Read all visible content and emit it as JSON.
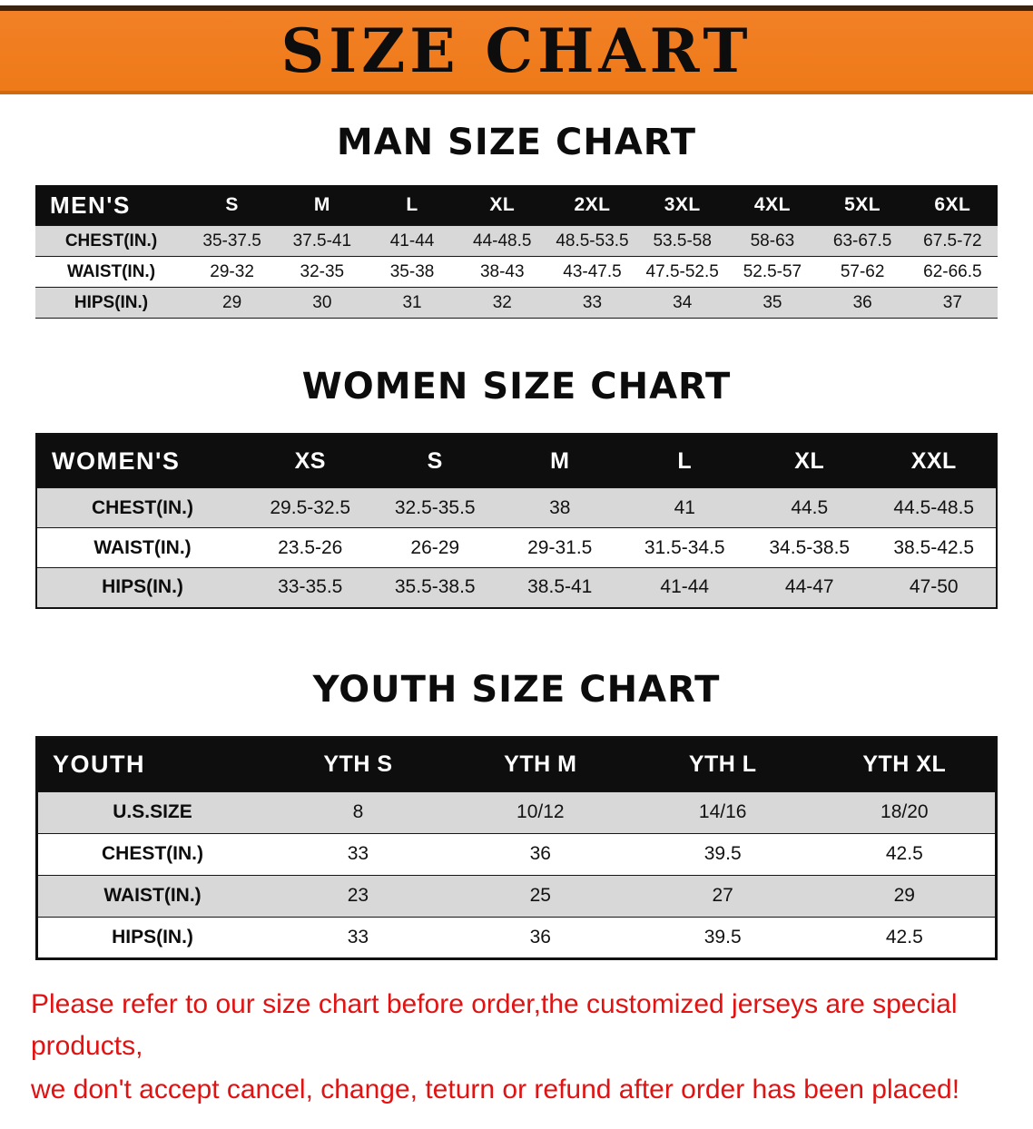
{
  "banner": {
    "title": "SIZE CHART"
  },
  "colors": {
    "banner_bg": "#ee7a18",
    "table_header_bg": "#0e0e0e",
    "row_alt_bg": "#d8d8d8",
    "notice_text": "#e11212"
  },
  "sections": [
    {
      "heading": "MAN SIZE CHART",
      "table": {
        "header": [
          "MEN'S",
          "S",
          "M",
          "L",
          "XL",
          "2XL",
          "3XL",
          "4XL",
          "5XL",
          "6XL"
        ],
        "rows": [
          {
            "label": "CHEST(IN.)",
            "values": [
              "35-37.5",
              "37.5-41",
              "41-44",
              "44-48.5",
              "48.5-53.5",
              "53.5-58",
              "58-63",
              "63-67.5",
              "67.5-72"
            ]
          },
          {
            "label": "WAIST(IN.)",
            "values": [
              "29-32",
              "32-35",
              "35-38",
              "38-43",
              "43-47.5",
              "47.5-52.5",
              "52.5-57",
              "57-62",
              "62-66.5"
            ]
          },
          {
            "label": "HIPS(IN.)",
            "values": [
              "29",
              "30",
              "31",
              "32",
              "33",
              "34",
              "35",
              "36",
              "37"
            ]
          }
        ]
      }
    },
    {
      "heading": "WOMEN SIZE CHART",
      "table": {
        "header": [
          "WOMEN'S",
          "XS",
          "S",
          "M",
          "L",
          "XL",
          "XXL"
        ],
        "rows": [
          {
            "label": "CHEST(IN.)",
            "values": [
              "29.5-32.5",
              "32.5-35.5",
              "38",
              "41",
              "44.5",
              "44.5-48.5"
            ]
          },
          {
            "label": "WAIST(IN.)",
            "values": [
              "23.5-26",
              "26-29",
              "29-31.5",
              "31.5-34.5",
              "34.5-38.5",
              "38.5-42.5"
            ]
          },
          {
            "label": "HIPS(IN.)",
            "values": [
              "33-35.5",
              "35.5-38.5",
              "38.5-41",
              "41-44",
              "44-47",
              "47-50"
            ]
          }
        ]
      }
    },
    {
      "heading": "YOUTH SIZE CHART",
      "table": {
        "header": [
          "YOUTH",
          "YTH S",
          "YTH M",
          "YTH L",
          "YTH XL"
        ],
        "rows": [
          {
            "label": "U.S.SIZE",
            "values": [
              "8",
              "10/12",
              "14/16",
              "18/20"
            ]
          },
          {
            "label": "CHEST(IN.)",
            "values": [
              "33",
              "36",
              "39.5",
              "42.5"
            ]
          },
          {
            "label": "WAIST(IN.)",
            "values": [
              "23",
              "25",
              "27",
              "29"
            ]
          },
          {
            "label": "HIPS(IN.)",
            "values": [
              "33",
              "36",
              "39.5",
              "42.5"
            ]
          }
        ]
      }
    }
  ],
  "notice": {
    "line1": "Please refer to our size chart before order,the customized jerseys are special products,",
    "line2": "we don't accept cancel, change, teturn or refund after order has been placed!"
  }
}
